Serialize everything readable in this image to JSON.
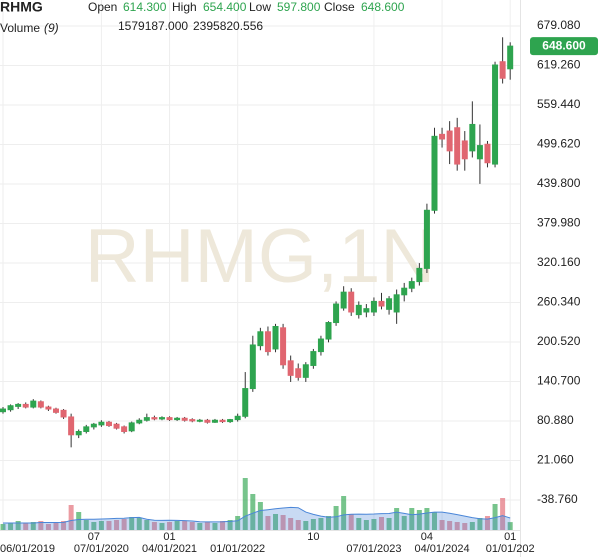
{
  "chart_data": {
    "type": "candlestick",
    "title": "RHMG",
    "watermark": "RHMG,1N",
    "legend_labels": [
      "Open",
      "High",
      "Low",
      "Close"
    ],
    "legend_values": [
      614.3,
      654.4,
      597.8,
      648.6
    ],
    "legend_value_labels": [
      "614.300",
      "654.400",
      "597.800",
      "648.600"
    ],
    "last_price": 648.6,
    "last_price_label": "648.600",
    "up_color": "#2ea44f",
    "down_color": "#e06670",
    "categories": [
      "06/01/2019",
      null,
      null,
      null,
      null,
      null,
      null,
      null,
      null,
      null,
      null,
      null,
      null,
      "07/01/2020",
      null,
      null,
      null,
      null,
      null,
      null,
      null,
      null,
      "04/01/2021",
      null,
      null,
      null,
      null,
      null,
      null,
      null,
      null,
      "01/01/2022",
      null,
      null,
      null,
      null,
      null,
      null,
      null,
      null,
      null,
      null,
      null,
      null,
      null,
      null,
      null,
      null,
      null,
      "07/01/2023",
      null,
      null,
      null,
      null,
      null,
      null,
      null,
      null,
      "04/01/2024",
      null,
      null,
      null,
      null,
      null,
      null,
      null,
      null,
      "01/01/202"
    ],
    "xticks_top": [
      {
        "value": 12,
        "label": "07"
      },
      {
        "value": 22,
        "label": "01"
      },
      {
        "value": 41,
        "label": "10"
      },
      {
        "value": 56,
        "label": "04"
      },
      {
        "value": 67,
        "label": "01"
      }
    ],
    "open": [
      95,
      98,
      103,
      106,
      102,
      110,
      102,
      99,
      97,
      87,
      60,
      65,
      72,
      75,
      79,
      76,
      72,
      66,
      78,
      82,
      86,
      84,
      86,
      83,
      85,
      83,
      81,
      82,
      79,
      82,
      80,
      83,
      88,
      130,
      195,
      216,
      190,
      222,
      172,
      160,
      147,
      165,
      186,
      205,
      230,
      252,
      276,
      242,
      246,
      246,
      262,
      250,
      246,
      272,
      282,
      292,
      312,
      400,
      515,
      520,
      525,
      505,
      490,
      478,
      500,
      470,
      625,
      614.3
    ],
    "high": [
      102,
      106,
      108,
      109,
      114,
      112,
      104,
      101,
      99,
      92,
      68,
      75,
      78,
      82,
      81,
      78,
      74,
      80,
      85,
      92,
      89,
      88,
      88,
      87,
      87,
      85,
      84,
      84,
      84,
      84,
      84,
      92,
      155,
      210,
      222,
      224,
      228,
      228,
      180,
      168,
      170,
      190,
      210,
      232,
      262,
      285,
      282,
      262,
      258,
      268,
      275,
      270,
      280,
      290,
      298,
      320,
      410,
      525,
      525,
      535,
      540,
      520,
      565,
      530,
      505,
      625,
      662,
      654.4
    ],
    "low": [
      92,
      95,
      99,
      100,
      100,
      100,
      96,
      92,
      84,
      41,
      55,
      62,
      68,
      72,
      72,
      68,
      62,
      64,
      76,
      80,
      82,
      82,
      81,
      81,
      80,
      79,
      79,
      77,
      78,
      78,
      78,
      80,
      85,
      125,
      188,
      180,
      185,
      160,
      140,
      142,
      140,
      160,
      180,
      200,
      225,
      248,
      240,
      236,
      238,
      240,
      250,
      242,
      228,
      262,
      276,
      286,
      305,
      395,
      495,
      470,
      460,
      460,
      480,
      440,
      465,
      465,
      592,
      597.8
    ],
    "close": [
      99,
      104,
      106,
      102,
      111,
      102,
      99,
      94,
      87,
      60,
      65,
      72,
      76,
      79,
      74,
      70,
      65,
      78,
      82,
      86,
      84,
      86,
      83,
      85,
      82,
      81,
      82,
      79,
      82,
      80,
      83,
      88,
      130,
      196,
      216,
      186,
      224,
      166,
      150,
      147,
      166,
      186,
      205,
      230,
      258,
      276,
      246,
      256,
      251,
      262,
      255,
      266,
      272,
      282,
      292,
      312,
      400,
      512,
      508,
      490,
      470,
      478,
      530,
      498,
      472,
      620,
      600,
      648.6
    ],
    "ylim": [
      -84.2,
      710.9
    ],
    "yticks": [
      {
        "value": 679.08,
        "label": "679.080"
      },
      {
        "value": 619.26,
        "label": "619.260"
      },
      {
        "value": 559.44,
        "label": "559.440"
      },
      {
        "value": 499.62,
        "label": "499.620"
      },
      {
        "value": 439.8,
        "label": "439.800"
      },
      {
        "value": 379.98,
        "label": "379.980"
      },
      {
        "value": 320.16,
        "label": "320.160"
      },
      {
        "value": 260.34,
        "label": "260.340"
      },
      {
        "value": 200.52,
        "label": "200.520"
      },
      {
        "value": 140.7,
        "label": "140.700"
      },
      {
        "value": 80.88,
        "label": "80.880"
      },
      {
        "value": 21.06,
        "label": "21.060"
      },
      {
        "value": -38.76,
        "label": "-38.760"
      }
    ],
    "grid": true,
    "volume": {
      "name": "Volume",
      "period_label": "(9)",
      "ylim": [
        0,
        10600000
      ],
      "values": [
        1200000,
        1400000,
        1800000,
        1400000,
        1600000,
        1800000,
        1200000,
        1400000,
        1800000,
        5000000,
        3600000,
        2000000,
        1600000,
        1800000,
        1800000,
        2000000,
        2200000,
        2600000,
        2400000,
        2000000,
        1600000,
        1400000,
        1600000,
        1800000,
        1800000,
        1600000,
        1400000,
        1600000,
        1400000,
        1800000,
        2000000,
        2800000,
        10400000,
        7200000,
        5600000,
        2800000,
        3200000,
        3000000,
        2400000,
        2000000,
        1800000,
        2200000,
        2400000,
        2800000,
        4800000,
        6800000,
        3200000,
        2400000,
        2000000,
        2200000,
        2600000,
        2400000,
        4400000,
        2800000,
        4400000,
        4000000,
        4400000,
        3600000,
        2000000,
        1800000,
        1600000,
        1400000,
        1600000,
        2400000,
        2800000,
        5200000,
        6400000,
        1579187
      ],
      "last_label": "1579187.000",
      "last_color": "#e05555",
      "ma_values": [
        1400000,
        1400000,
        1400000,
        1400000,
        1400000,
        1500000,
        1500000,
        1500000,
        1520000,
        1900000,
        2100000,
        2160000,
        2140000,
        2200000,
        2260000,
        2320000,
        2360000,
        2480000,
        2520000,
        2160000,
        1960000,
        1920000,
        1960000,
        1920000,
        1880000,
        1800000,
        1660000,
        1620000,
        1620000,
        1640000,
        1720000,
        1840000,
        2760000,
        3360000,
        3900000,
        4060000,
        4240000,
        4400000,
        4520000,
        4460000,
        3580000,
        3120000,
        2780000,
        2560000,
        2640000,
        3020000,
        3160000,
        3180000,
        3160000,
        3200000,
        3280000,
        3300000,
        3580000,
        3320000,
        3040000,
        3180000,
        3400000,
        3580000,
        3580000,
        3360000,
        3080000,
        2780000,
        2480000,
        2260000,
        2180000,
        2480000,
        2860000,
        2395820.556
      ],
      "ma_last_label": "2395820.556",
      "ma_color": "#4a86d8"
    }
  }
}
